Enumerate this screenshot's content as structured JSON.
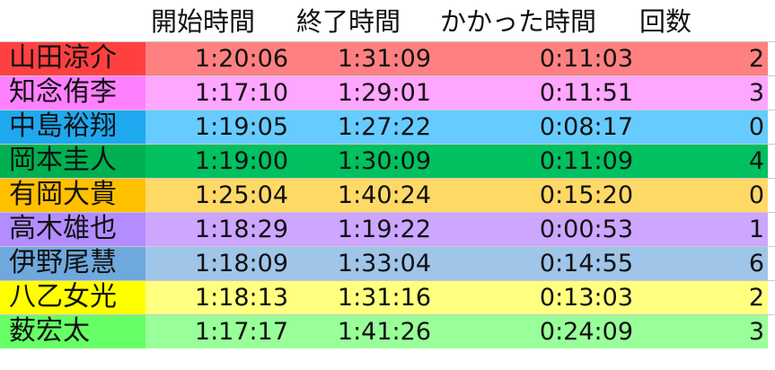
{
  "header": {
    "start": "開始時間",
    "end": "終了時間",
    "duration": "かかった時間",
    "count": "回数"
  },
  "rows": [
    {
      "name": "山田涼介",
      "start": "1:20:06",
      "end": "1:31:09",
      "duration": "0:11:03",
      "count": "2",
      "name_bg": "#ff4040",
      "band_bg": "#ff8080"
    },
    {
      "name": "知念侑李",
      "start": "1:17:10",
      "end": "1:29:01",
      "duration": "0:11:51",
      "count": "3",
      "name_bg": "#ff80ff",
      "band_bg": "#ffa6ff"
    },
    {
      "name": "中島裕翔",
      "start": "1:19:05",
      "end": "1:27:22",
      "duration": "0:08:17",
      "count": "0",
      "name_bg": "#1ea8f0",
      "band_bg": "#66ccff"
    },
    {
      "name": "岡本圭人",
      "start": "1:19:00",
      "end": "1:30:09",
      "duration": "0:11:09",
      "count": "4",
      "name_bg": "#00b050",
      "band_bg": "#00c060"
    },
    {
      "name": "有岡大貴",
      "start": "1:25:04",
      "end": "1:40:24",
      "duration": "0:15:20",
      "count": "0",
      "name_bg": "#ffc000",
      "band_bg": "#ffd966"
    },
    {
      "name": "高木雄也",
      "start": "1:18:29",
      "end": "1:19:22",
      "duration": "0:00:53",
      "count": "1",
      "name_bg": "#b38cff",
      "band_bg": "#cca6ff"
    },
    {
      "name": "伊野尾慧",
      "start": "1:18:09",
      "end": "1:33:04",
      "duration": "0:14:55",
      "count": "6",
      "name_bg": "#6fa8dc",
      "band_bg": "#9fc5e8"
    },
    {
      "name": "八乙女光",
      "start": "1:18:13",
      "end": "1:31:16",
      "duration": "0:13:03",
      "count": "2",
      "name_bg": "#ffff00",
      "band_bg": "#ffff80"
    },
    {
      "name": "薮宏太",
      "start": "1:17:17",
      "end": "1:41:26",
      "duration": "0:24:09",
      "count": "3",
      "name_bg": "#66ff66",
      "band_bg": "#99ff99"
    }
  ]
}
